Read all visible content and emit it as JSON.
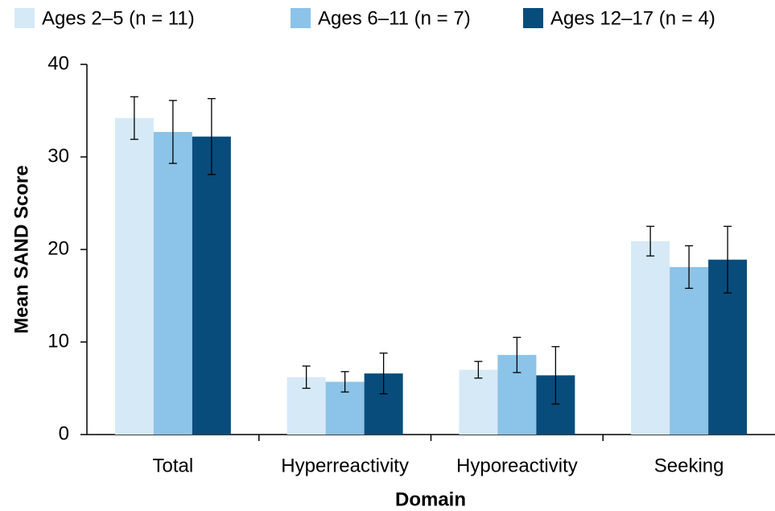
{
  "chart_data": {
    "type": "bar",
    "y_label": "Mean SAND Score",
    "x_label": "Domain",
    "categories": [
      "Total",
      "Hyperreactivity",
      "Hyporeactivity",
      "Seeking"
    ],
    "series": [
      {
        "name": "Ages 2–5 (n = 11)",
        "color": "#d6e9f7",
        "values": [
          34.2,
          6.2,
          7.0,
          20.9
        ],
        "errors": [
          2.3,
          1.2,
          0.9,
          1.6
        ]
      },
      {
        "name": "Ages 6–11 (n = 7)",
        "color": "#8cc3e8",
        "values": [
          32.7,
          5.7,
          8.6,
          18.1
        ],
        "errors": [
          3.4,
          1.1,
          1.9,
          2.3
        ]
      },
      {
        "name": "Ages 12–17 (n = 4)",
        "color": "#084c7c",
        "values": [
          32.2,
          6.6,
          6.4,
          18.9
        ],
        "errors": [
          4.1,
          2.2,
          3.1,
          3.6
        ]
      }
    ],
    "ylim": [
      0,
      40
    ],
    "yticks": [
      0,
      10,
      20,
      30,
      40
    ],
    "grid": false
  }
}
